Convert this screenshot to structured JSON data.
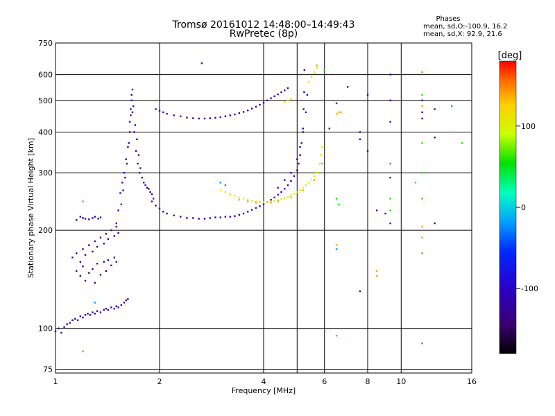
{
  "chart_data": {
    "type": "scatter",
    "title": "Tromsø 20161012 14:48:00–14:49:43",
    "subtitle": "RwPretec (8p)",
    "xlabel": "Frequency [MHz]",
    "ylabel": "Stationary phase Virtual Height [km]",
    "x_scale": "log",
    "y_scale": "log",
    "xlim": [
      1,
      16
    ],
    "ylim": [
      73,
      750
    ],
    "x_ticks": [
      1,
      2,
      4,
      6,
      8,
      10,
      16
    ],
    "x_gridlines": [
      1,
      2,
      4,
      5,
      6,
      8,
      10,
      16
    ],
    "y_ticks": [
      75,
      100,
      200,
      300,
      400,
      500,
      600,
      750
    ],
    "grid": true,
    "phase_stats": {
      "header": "Phases",
      "line1": "mean, sd,O:-100.9, 16.2",
      "line2": "mean, sd,X:  92.9, 21.6"
    },
    "colorbar": {
      "label": "[deg]",
      "ticks": [
        100,
        0,
        -100
      ],
      "range": [
        -180,
        180
      ],
      "colormap": "rainbow"
    },
    "series": [
      {
        "phase_deg": -120,
        "points": [
          [
            1.0,
            98
          ],
          [
            1.02,
            100
          ],
          [
            1.04,
            97
          ],
          [
            1.06,
            101
          ],
          [
            1.08,
            103
          ],
          [
            1.1,
            104
          ],
          [
            1.12,
            106
          ],
          [
            1.14,
            107
          ],
          [
            1.16,
            106
          ],
          [
            1.18,
            109
          ],
          [
            1.2,
            108
          ],
          [
            1.22,
            110
          ],
          [
            1.24,
            111
          ],
          [
            1.26,
            110
          ],
          [
            1.28,
            112
          ],
          [
            1.3,
            111
          ],
          [
            1.32,
            113
          ],
          [
            1.35,
            112
          ],
          [
            1.38,
            114
          ],
          [
            1.4,
            115
          ],
          [
            1.42,
            114
          ],
          [
            1.45,
            116
          ],
          [
            1.48,
            115
          ],
          [
            1.5,
            117
          ],
          [
            1.52,
            116
          ],
          [
            1.55,
            118
          ],
          [
            1.58,
            120
          ],
          [
            1.6,
            122
          ],
          [
            1.62,
            123
          ],
          [
            1.15,
            215
          ],
          [
            1.18,
            220
          ],
          [
            1.2,
            218
          ],
          [
            1.22,
            217
          ],
          [
            1.25,
            216
          ],
          [
            1.28,
            218
          ],
          [
            1.3,
            220
          ],
          [
            1.33,
            217
          ],
          [
            1.35,
            219
          ],
          [
            1.12,
            165
          ],
          [
            1.15,
            170
          ],
          [
            1.18,
            160
          ],
          [
            1.2,
            175
          ],
          [
            1.22,
            168
          ],
          [
            1.25,
            180
          ],
          [
            1.28,
            172
          ],
          [
            1.3,
            185
          ],
          [
            1.32,
            178
          ],
          [
            1.35,
            190
          ],
          [
            1.38,
            182
          ],
          [
            1.4,
            195
          ],
          [
            1.42,
            188
          ],
          [
            1.45,
            200
          ],
          [
            1.48,
            192
          ],
          [
            1.5,
            205
          ],
          [
            1.52,
            196
          ],
          [
            1.15,
            150
          ],
          [
            1.18,
            145
          ],
          [
            1.2,
            155
          ],
          [
            1.22,
            140
          ],
          [
            1.25,
            148
          ],
          [
            1.28,
            152
          ],
          [
            1.3,
            138
          ],
          [
            1.32,
            158
          ],
          [
            1.35,
            146
          ],
          [
            1.38,
            160
          ],
          [
            1.4,
            150
          ],
          [
            1.42,
            162
          ],
          [
            1.45,
            156
          ],
          [
            1.48,
            165
          ],
          [
            1.5,
            160
          ]
        ]
      },
      {
        "phase_deg": -105,
        "points": [
          [
            1.5,
            210
          ],
          [
            1.52,
            230
          ],
          [
            1.54,
            260
          ],
          [
            1.56,
            280
          ],
          [
            1.58,
            300
          ],
          [
            1.6,
            330
          ],
          [
            1.62,
            360
          ],
          [
            1.64,
            400
          ],
          [
            1.65,
            450
          ],
          [
            1.66,
            500
          ],
          [
            1.67,
            540
          ],
          [
            1.68,
            480
          ],
          [
            1.7,
            420
          ],
          [
            1.72,
            380
          ],
          [
            1.74,
            340
          ],
          [
            1.76,
            310
          ],
          [
            1.78,
            290
          ],
          [
            1.8,
            280
          ],
          [
            1.82,
            275
          ],
          [
            1.84,
            270
          ],
          [
            1.86,
            268
          ],
          [
            1.88,
            262
          ],
          [
            1.9,
            258
          ],
          [
            1.92,
            250
          ],
          [
            1.55,
            240
          ],
          [
            1.57,
            265
          ],
          [
            1.59,
            290
          ],
          [
            1.61,
            320
          ],
          [
            1.63,
            370
          ],
          [
            1.64,
            430
          ],
          [
            1.65,
            470
          ],
          [
            1.66,
            520
          ],
          [
            1.67,
            460
          ],
          [
            1.69,
            400
          ],
          [
            1.71,
            350
          ],
          [
            1.73,
            320
          ],
          [
            1.75,
            300
          ],
          [
            1.9,
            245
          ],
          [
            1.95,
            238
          ],
          [
            2.0,
            233
          ],
          [
            2.05,
            228
          ],
          [
            2.1,
            225
          ],
          [
            2.2,
            222
          ],
          [
            2.3,
            220
          ],
          [
            2.4,
            218
          ],
          [
            2.5,
            218
          ],
          [
            2.6,
            217
          ],
          [
            2.7,
            217
          ],
          [
            2.8,
            218
          ],
          [
            2.9,
            219
          ],
          [
            3.0,
            219
          ],
          [
            3.1,
            220
          ],
          [
            3.2,
            220
          ],
          [
            3.3,
            221
          ],
          [
            3.4,
            223
          ],
          [
            3.5,
            225
          ],
          [
            3.6,
            228
          ],
          [
            3.7,
            231
          ],
          [
            3.8,
            234
          ],
          [
            3.9,
            237
          ],
          [
            4.0,
            240
          ],
          [
            4.1,
            244
          ],
          [
            4.2,
            248
          ],
          [
            4.3,
            252
          ],
          [
            4.4,
            257
          ],
          [
            4.5,
            262
          ],
          [
            4.6,
            268
          ],
          [
            4.7,
            275
          ],
          [
            4.8,
            283
          ],
          [
            4.9,
            293
          ],
          [
            5.0,
            305
          ],
          [
            5.05,
            320
          ],
          [
            5.1,
            340
          ],
          [
            5.15,
            370
          ],
          [
            5.2,
            410
          ],
          [
            5.22,
            470
          ],
          [
            5.24,
            530
          ],
          [
            5.25,
            620
          ],
          [
            1.95,
            470
          ],
          [
            2.0,
            465
          ],
          [
            2.05,
            460
          ],
          [
            2.1,
            455
          ],
          [
            2.2,
            450
          ],
          [
            2.3,
            447
          ],
          [
            2.4,
            443
          ],
          [
            2.5,
            441
          ],
          [
            2.6,
            440
          ],
          [
            2.7,
            440
          ],
          [
            2.8,
            441
          ],
          [
            2.9,
            442
          ],
          [
            3.0,
            444
          ],
          [
            3.1,
            447
          ],
          [
            3.2,
            450
          ],
          [
            3.3,
            453
          ],
          [
            3.4,
            457
          ],
          [
            3.5,
            461
          ],
          [
            3.6,
            466
          ],
          [
            3.7,
            472
          ],
          [
            3.8,
            478
          ],
          [
            3.9,
            485
          ],
          [
            4.0,
            492
          ],
          [
            4.1,
            500
          ],
          [
            4.2,
            508
          ],
          [
            4.3,
            515
          ],
          [
            4.4,
            522
          ],
          [
            4.5,
            530
          ],
          [
            4.6,
            537
          ],
          [
            4.7,
            545
          ],
          [
            4.4,
            270
          ],
          [
            4.6,
            285
          ],
          [
            4.8,
            300
          ],
          [
            5.0,
            330
          ],
          [
            5.1,
            360
          ],
          [
            5.2,
            400
          ],
          [
            5.3,
            460
          ],
          [
            5.35,
            520
          ]
        ]
      },
      {
        "phase_deg": 100,
        "points": [
          [
            3.0,
            265
          ],
          [
            3.1,
            262
          ],
          [
            3.2,
            258
          ],
          [
            3.3,
            255
          ],
          [
            3.4,
            252
          ],
          [
            3.5,
            250
          ],
          [
            3.6,
            248
          ],
          [
            3.7,
            246
          ],
          [
            3.8,
            245
          ],
          [
            3.9,
            245
          ],
          [
            4.0,
            244
          ],
          [
            4.1,
            244
          ],
          [
            4.2,
            245
          ],
          [
            4.3,
            246
          ],
          [
            4.4,
            247
          ],
          [
            4.5,
            249
          ],
          [
            4.6,
            251
          ],
          [
            4.7,
            253
          ],
          [
            4.8,
            256
          ],
          [
            4.9,
            259
          ],
          [
            5.0,
            262
          ],
          [
            5.1,
            266
          ],
          [
            5.2,
            270
          ],
          [
            5.3,
            275
          ],
          [
            5.4,
            280
          ],
          [
            5.5,
            286
          ],
          [
            5.6,
            293
          ],
          [
            5.7,
            300
          ],
          [
            5.8,
            320
          ],
          [
            5.85,
            340
          ],
          [
            5.9,
            360
          ],
          [
            4.6,
            495
          ],
          [
            4.7,
            500
          ],
          [
            4.8,
            505
          ],
          [
            5.4,
            570
          ],
          [
            5.5,
            590
          ],
          [
            5.6,
            610
          ],
          [
            5.7,
            630
          ]
        ]
      },
      {
        "phase_deg": 140,
        "points": [
          [
            3.4,
            248
          ],
          [
            3.6,
            245
          ],
          [
            3.8,
            243
          ],
          [
            4.2,
            243
          ],
          [
            4.4,
            245
          ],
          [
            4.8,
            252
          ],
          [
            5.2,
            265
          ],
          [
            5.6,
            285
          ],
          [
            5.8,
            300
          ],
          [
            5.9,
            320
          ],
          [
            5.7,
            640
          ],
          [
            6.5,
            455
          ],
          [
            6.7,
            460
          ],
          [
            6.6,
            460
          ],
          [
            6.5,
            180
          ],
          [
            8.5,
            150
          ],
          [
            8.5,
            145
          ],
          [
            11.5,
            480
          ],
          [
            11.5,
            190
          ],
          [
            11.5,
            205
          ]
        ]
      },
      {
        "phase_deg": -90,
        "points": [
          [
            6.2,
            410
          ],
          [
            6.5,
            490
          ],
          [
            7.0,
            550
          ],
          [
            7.6,
            380
          ],
          [
            7.6,
            400
          ],
          [
            8.0,
            520
          ],
          [
            8.5,
            230
          ],
          [
            9.0,
            225
          ],
          [
            9.3,
            600
          ],
          [
            9.3,
            500
          ],
          [
            9.3,
            430
          ],
          [
            9.3,
            290
          ],
          [
            9.3,
            210
          ],
          [
            11.5,
            500
          ],
          [
            11.5,
            460
          ],
          [
            11.5,
            440
          ],
          [
            12.5,
            470
          ],
          [
            12.5,
            385
          ],
          [
            12.5,
            210
          ],
          [
            7.6,
            130
          ],
          [
            8.0,
            350
          ],
          [
            2.65,
            650
          ]
        ]
      },
      {
        "phase_deg": -20,
        "points": [
          [
            3.0,
            280
          ],
          [
            3.1,
            275
          ],
          [
            6.5,
            175
          ],
          [
            9.3,
            320
          ],
          [
            11.5,
            90
          ],
          [
            14.0,
            480
          ],
          [
            1.3,
            120
          ]
        ]
      },
      {
        "phase_deg": 60,
        "points": [
          [
            1.2,
            85
          ],
          [
            1.2,
            245
          ],
          [
            6.5,
            95
          ],
          [
            6.5,
            250
          ],
          [
            11.5,
            610
          ],
          [
            11.5,
            520
          ],
          [
            11.5,
            370
          ],
          [
            11.5,
            300
          ],
          [
            11.5,
            250
          ],
          [
            11.5,
            170
          ],
          [
            11.0,
            280
          ],
          [
            15.0,
            370
          ],
          [
            6.6,
            240
          ],
          [
            9.3,
            230
          ],
          [
            9.3,
            250
          ],
          [
            6.0,
            620
          ]
        ]
      }
    ]
  }
}
